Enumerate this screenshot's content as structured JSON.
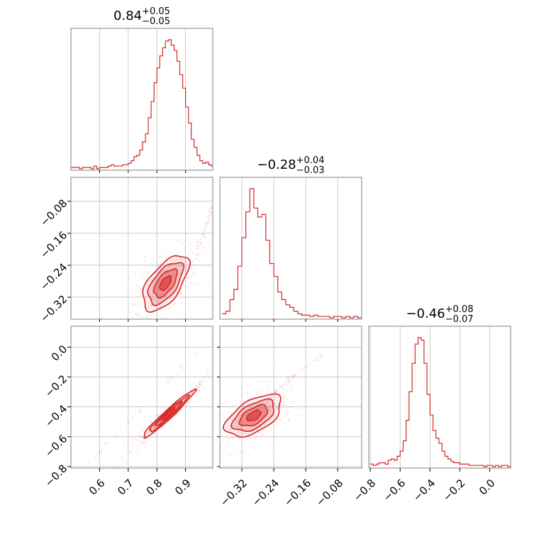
{
  "chart_data": {
    "type": "corner",
    "color": "#d62728",
    "grid": true,
    "parameters": [
      {
        "title": {
          "median": "0.84",
          "plus": "+0.05",
          "minus": "−0.05"
        },
        "range": [
          0.5,
          0.995
        ],
        "ticks": [
          0.6,
          0.7,
          0.8,
          0.9
        ],
        "tick_labels": [
          "0.6",
          "0.7",
          "0.8",
          "0.9"
        ],
        "hist": {
          "bins": [
            0.5,
            0.51,
            0.52,
            0.53,
            0.54,
            0.55,
            0.56,
            0.57,
            0.58,
            0.59,
            0.6,
            0.61,
            0.62,
            0.63,
            0.64,
            0.65,
            0.66,
            0.67,
            0.68,
            0.69,
            0.7,
            0.71,
            0.72,
            0.73,
            0.74,
            0.75,
            0.76,
            0.77,
            0.78,
            0.79,
            0.8,
            0.81,
            0.82,
            0.83,
            0.84,
            0.85,
            0.86,
            0.87,
            0.88,
            0.89,
            0.9,
            0.91,
            0.92,
            0.93,
            0.94,
            0.95,
            0.96,
            0.97,
            0.98,
            0.99
          ],
          "counts": [
            1,
            1,
            1,
            0,
            1,
            1,
            1,
            0,
            2,
            0,
            1,
            1,
            1,
            2,
            3,
            2,
            2,
            2,
            3,
            3,
            4,
            6,
            9,
            10,
            14,
            20,
            26,
            38,
            50,
            64,
            75,
            84,
            90,
            95,
            96,
            92,
            88,
            80,
            70,
            60,
            46,
            34,
            22,
            16,
            10,
            6,
            4,
            5,
            3,
            2
          ]
        }
      },
      {
        "title": {
          "median": "−0.28",
          "plus": "+0.04",
          "minus": "−0.03"
        },
        "range": [
          -0.375,
          -0.02
        ],
        "ticks": [
          -0.32,
          -0.24,
          -0.16,
          -0.08
        ],
        "tick_labels": [
          "−0.32",
          "−0.24",
          "−0.16",
          "−0.08"
        ],
        "hist": {
          "bins": [
            -0.37,
            -0.36,
            -0.35,
            -0.34,
            -0.33,
            -0.32,
            -0.31,
            -0.3,
            -0.29,
            -0.28,
            -0.27,
            -0.26,
            -0.25,
            -0.24,
            -0.23,
            -0.22,
            -0.21,
            -0.2,
            -0.19,
            -0.18,
            -0.17,
            -0.16,
            -0.15,
            -0.14,
            -0.13,
            -0.12,
            -0.11,
            -0.1,
            -0.09,
            -0.08,
            -0.07,
            -0.06,
            -0.05,
            -0.04,
            -0.03
          ],
          "counts": [
            3,
            5,
            14,
            22,
            40,
            62,
            82,
            100,
            85,
            78,
            80,
            60,
            42,
            32,
            20,
            14,
            10,
            8,
            5,
            3,
            2,
            2,
            1,
            2,
            1,
            1,
            1,
            0,
            1,
            1,
            0,
            1,
            0,
            1,
            0
          ]
        }
      },
      {
        "title": {
          "median": "−0.46",
          "plus": "+0.08",
          "minus": "−0.07"
        },
        "range": [
          -0.81,
          0.14
        ],
        "ticks": [
          -0.8,
          -0.6,
          -0.4,
          -0.2,
          0.0
        ],
        "tick_labels": [
          "−0.8",
          "−0.6",
          "−0.4",
          "−0.2",
          "0.0"
        ],
        "hist": {
          "bins": [
            -0.8,
            -0.78,
            -0.76,
            -0.74,
            -0.72,
            -0.7,
            -0.68,
            -0.66,
            -0.64,
            -0.62,
            -0.6,
            -0.58,
            -0.56,
            -0.54,
            -0.52,
            -0.5,
            -0.48,
            -0.46,
            -0.44,
            -0.42,
            -0.4,
            -0.38,
            -0.36,
            -0.34,
            -0.32,
            -0.3,
            -0.28,
            -0.26,
            -0.24,
            -0.22,
            -0.2,
            -0.18,
            -0.16,
            -0.14,
            -0.12,
            -0.1,
            -0.08,
            -0.06,
            -0.04,
            -0.02,
            0.0,
            0.02,
            0.04,
            0.06,
            0.08,
            0.1,
            0.12
          ],
          "counts": [
            2,
            1,
            2,
            3,
            3,
            2,
            5,
            6,
            5,
            8,
            12,
            20,
            36,
            58,
            80,
            95,
            100,
            98,
            80,
            56,
            40,
            28,
            22,
            18,
            12,
            8,
            6,
            4,
            3,
            3,
            2,
            2,
            2,
            1,
            1,
            1,
            1,
            1,
            0,
            1,
            1,
            0,
            1,
            0,
            1,
            1,
            0
          ]
        }
      }
    ],
    "pairs": [
      {
        "row": 1,
        "col": 0,
        "center": [
          0.83,
          -0.285
        ],
        "sigma": [
          0.04,
          0.035
        ],
        "rho": 0.6,
        "tail": {
          "x": [
            0.93,
            0.995
          ],
          "y": [
            -0.23,
            -0.09
          ]
        }
      },
      {
        "row": 2,
        "col": 0,
        "center": [
          0.84,
          -0.45
        ],
        "sigma": [
          0.045,
          0.08
        ],
        "rho": 0.97,
        "tail": {
          "x": [
            0.55,
            0.995
          ],
          "y": [
            -0.8,
            0.08
          ]
        }
      },
      {
        "row": 2,
        "col": 1,
        "center": [
          -0.29,
          -0.46
        ],
        "sigma": [
          0.035,
          0.07
        ],
        "rho": 0.55,
        "tail": {
          "x": [
            -0.24,
            -0.12
          ],
          "y": [
            -0.3,
            -0.05
          ]
        }
      }
    ],
    "contour_levels": [
      0.5,
      1.0,
      1.5,
      2.0
    ]
  }
}
